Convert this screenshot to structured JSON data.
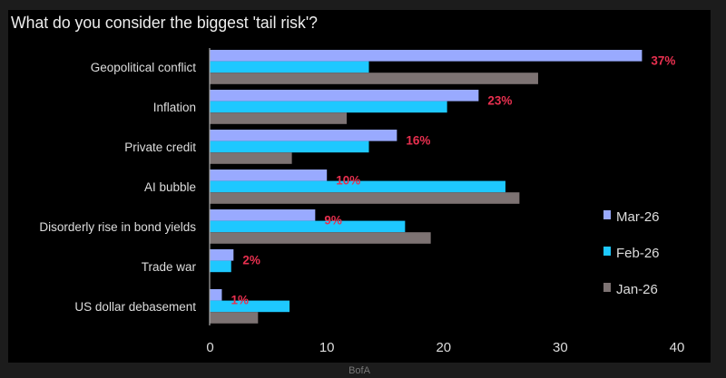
{
  "source": "BofA",
  "chart_data": {
    "type": "bar",
    "orientation": "horizontal",
    "title": "What do you consider the biggest 'tail risk'?",
    "categories": [
      "Geopolitical conflict",
      "Inflation",
      "Private credit",
      "AI bubble",
      "Disorderly rise in bond yields",
      "Trade war",
      "US dollar debasement"
    ],
    "series": [
      {
        "name": "Mar-26",
        "color": "#99aaff",
        "values": [
          37,
          23,
          16,
          10,
          9,
          2,
          1
        ]
      },
      {
        "name": "Feb-26",
        "color": "#1ec8ff",
        "values": [
          13.6,
          20.3,
          13.6,
          25.3,
          16.7,
          1.8,
          6.8
        ]
      },
      {
        "name": "Jan-26",
        "color": "#7d7373",
        "values": [
          28.1,
          11.7,
          7.0,
          26.5,
          18.9,
          0,
          4.1
        ]
      }
    ],
    "data_labels": [
      "37%",
      "23%",
      "16%",
      "10%",
      "9%",
      "2%",
      "1%"
    ],
    "data_label_color": "#e8304f",
    "xlim": [
      0,
      40
    ],
    "xticks": [
      "0",
      "10",
      "20",
      "30",
      "40"
    ],
    "grid": false,
    "legend_position": "right"
  }
}
